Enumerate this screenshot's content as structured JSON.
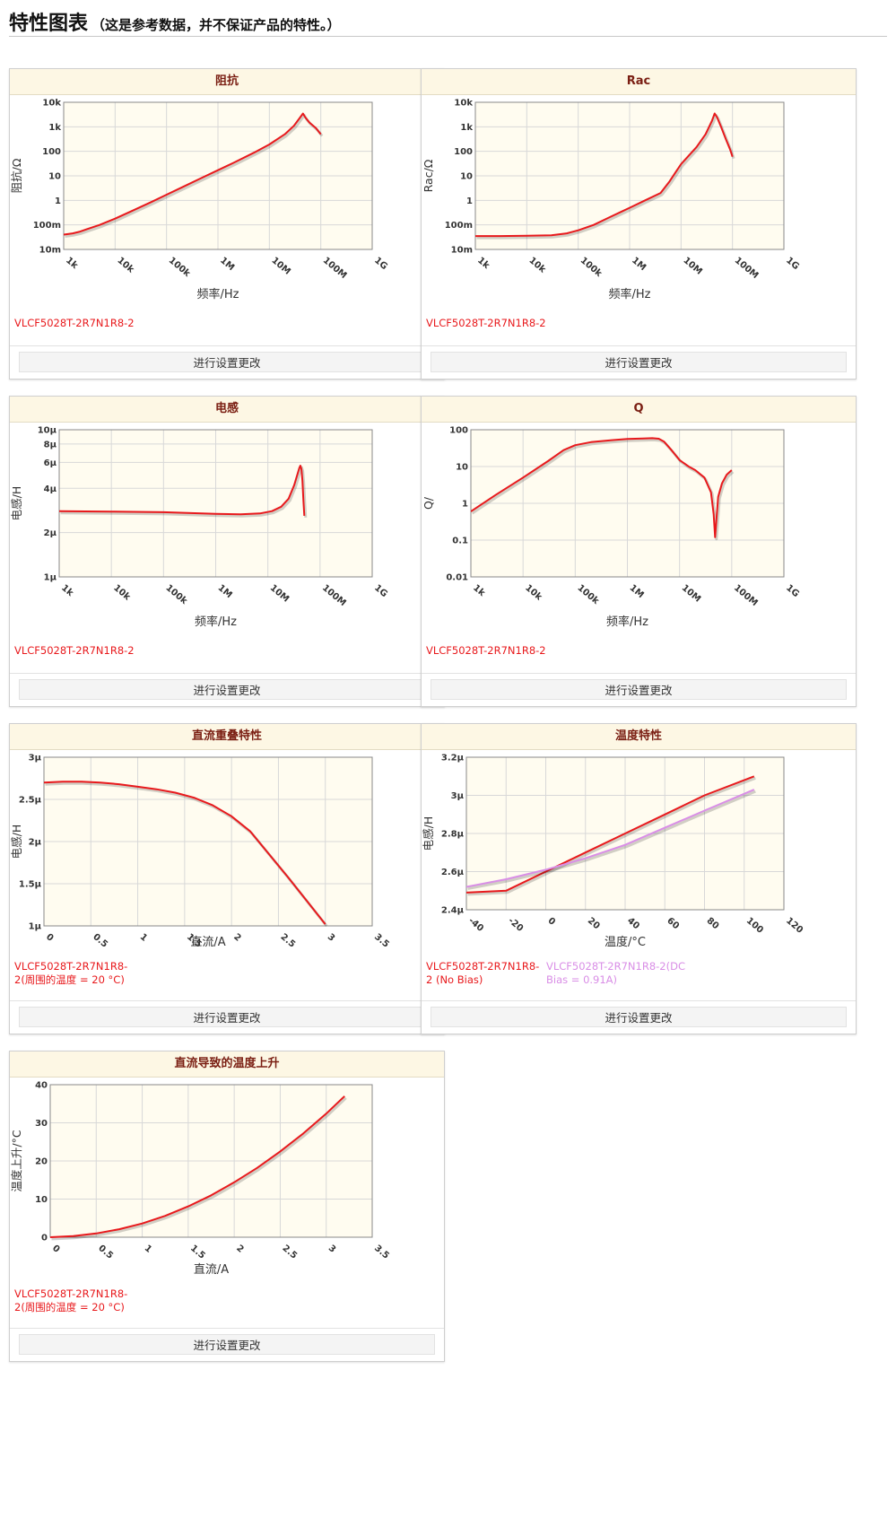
{
  "header": {
    "title": "特性图表",
    "subtitle": "（这是参考数据，并不保证产品的特性。）"
  },
  "button_label": "进行设置更改",
  "colors": {
    "series_red": "#e8191c",
    "series_violet": "#d98ee6",
    "plot_bg": "#fffcf0",
    "grid": "#d8d8d8",
    "header_bg": "#fdf7e4",
    "title_text": "#7a1e12"
  },
  "chart_data": [
    {
      "id": "impedance",
      "title": "阻抗",
      "type": "line",
      "x_scale": "log",
      "y_scale": "log",
      "xlim": [
        1000,
        1000000000
      ],
      "ylim": [
        0.01,
        10000
      ],
      "x_ticks": [
        "1k",
        "10k",
        "100k",
        "1M",
        "10M",
        "100M",
        "1G"
      ],
      "y_ticks": [
        "10m",
        "100m",
        "1",
        "10",
        "100",
        "1k",
        "10k"
      ],
      "xlabel": "频率/Hz",
      "ylabel": "阻抗/Ω",
      "series": [
        {
          "name": "VLCF5028T-2R7N1R8-2",
          "color": "#e8191c",
          "x": [
            1000,
            1500,
            2000,
            3000,
            5000,
            10000,
            20000,
            50000,
            100000,
            200000,
            500000,
            1000000,
            2000000,
            5000000,
            10000000,
            20000000,
            30000000,
            40000000,
            45000000,
            50000000,
            60000000,
            80000000,
            100000000
          ],
          "y": [
            0.04,
            0.045,
            0.052,
            0.07,
            0.1,
            0.18,
            0.35,
            0.85,
            1.7,
            3.4,
            8.5,
            17,
            34,
            88,
            190,
            500,
            1100,
            2500,
            3500,
            2400,
            1500,
            900,
            500
          ]
        }
      ]
    },
    {
      "id": "rac",
      "title": "Rac",
      "type": "line",
      "x_scale": "log",
      "y_scale": "log",
      "xlim": [
        1000,
        1000000000
      ],
      "ylim": [
        0.01,
        10000
      ],
      "x_ticks": [
        "1k",
        "10k",
        "100k",
        "1M",
        "10M",
        "100M",
        "1G"
      ],
      "y_ticks": [
        "10m",
        "100m",
        "1",
        "10",
        "100",
        "1k",
        "10k"
      ],
      "xlabel": "频率/Hz",
      "ylabel": "Rac/Ω",
      "series": [
        {
          "name": "VLCF5028T-2R7N1R8-2",
          "color": "#e8191c",
          "x": [
            1000,
            3000,
            10000,
            30000,
            60000,
            100000,
            200000,
            400000,
            700000,
            1000000,
            2000000,
            4000000,
            6000000,
            8000000,
            10000000,
            20000000,
            30000000,
            40000000,
            45000000,
            50000000,
            60000000,
            75000000,
            90000000,
            100000000
          ],
          "y": [
            0.035,
            0.035,
            0.036,
            0.038,
            0.045,
            0.06,
            0.1,
            0.2,
            0.35,
            0.5,
            1.0,
            2.0,
            6,
            15,
            30,
            150,
            500,
            1800,
            3500,
            2500,
            1000,
            300,
            120,
            60
          ]
        }
      ]
    },
    {
      "id": "inductance",
      "title": "电感",
      "type": "line",
      "x_scale": "log",
      "y_scale": "log",
      "xlim": [
        1000,
        1000000000
      ],
      "ylim": [
        1,
        10
      ],
      "x_ticks": [
        "1k",
        "10k",
        "100k",
        "1M",
        "10M",
        "100M",
        "1G"
      ],
      "y_ticks": [
        [
          "1μ",
          1
        ],
        [
          "2μ",
          2
        ],
        [
          "4μ",
          4
        ],
        [
          "6μ",
          6
        ],
        [
          "8μ",
          8
        ],
        [
          "10μ",
          10
        ]
      ],
      "xlabel": "频率/Hz",
      "ylabel": "电感/H",
      "series": [
        {
          "name": "VLCF5028T-2R7N1R8-2",
          "color": "#e8191c",
          "x": [
            1000,
            10000,
            100000,
            1000000,
            3000000,
            7000000,
            12000000,
            18000000,
            25000000,
            32000000,
            37000000,
            40000000,
            42000000,
            44000000,
            46000000,
            48000000,
            50000000
          ],
          "y": [
            2.8,
            2.78,
            2.75,
            2.68,
            2.66,
            2.7,
            2.8,
            3.0,
            3.4,
            4.2,
            5.0,
            5.5,
            5.7,
            5.4,
            4.5,
            3.3,
            2.6
          ]
        }
      ]
    },
    {
      "id": "q",
      "title": "Q",
      "type": "line",
      "x_scale": "log",
      "y_scale": "log",
      "xlim": [
        1000,
        1000000000
      ],
      "ylim": [
        0.01,
        100
      ],
      "x_ticks": [
        "1k",
        "10k",
        "100k",
        "1M",
        "10M",
        "100M",
        "1G"
      ],
      "y_ticks": [
        [
          "0.01",
          0.01
        ],
        [
          "0.1",
          0.1
        ],
        [
          "1",
          1
        ],
        [
          "10",
          10
        ],
        [
          "100",
          100
        ]
      ],
      "xlabel": "频率/Hz",
      "ylabel": "Q/",
      "series": [
        {
          "name": "VLCF5028T-2R7N1R8-2",
          "color": "#e8191c",
          "x": [
            1000,
            3000,
            10000,
            30000,
            60000,
            100000,
            200000,
            500000,
            1000000,
            2000000,
            3000000,
            4000000,
            5000000,
            7000000,
            10000000,
            15000000,
            20000000,
            30000000,
            40000000,
            45000000,
            48000000,
            50000000,
            55000000,
            65000000,
            80000000,
            100000000
          ],
          "y": [
            0.6,
            1.7,
            5,
            14,
            28,
            38,
            46,
            52,
            56,
            58,
            59,
            57,
            48,
            28,
            15,
            10,
            8,
            5,
            2,
            0.5,
            0.12,
            0.25,
            1.5,
            3.5,
            6,
            8
          ]
        }
      ]
    },
    {
      "id": "dc_bias",
      "title": "直流重叠特性",
      "type": "line",
      "x_scale": "linear",
      "y_scale": "linear",
      "xlim": [
        0,
        3.5
      ],
      "ylim": [
        1,
        3
      ],
      "x_ticks": [
        [
          "0",
          0
        ],
        [
          "0.5",
          0.5
        ],
        [
          "1",
          1
        ],
        [
          "1.5",
          1.5
        ],
        [
          "2",
          2
        ],
        [
          "2.5",
          2.5
        ],
        [
          "3",
          3
        ],
        [
          "3.5",
          3.5
        ]
      ],
      "y_ticks": [
        [
          "1μ",
          1
        ],
        [
          "1.5μ",
          1.5
        ],
        [
          "2μ",
          2
        ],
        [
          "2.5μ",
          2.5
        ],
        [
          "3μ",
          3
        ]
      ],
      "xlabel": "直流/A",
      "ylabel": "电感/H",
      "series": [
        {
          "name": "VLCF5028T-2R7N1R8-2(周围的温度 = 20 °C)",
          "color": "#e8191c",
          "x": [
            0,
            0.2,
            0.4,
            0.6,
            0.8,
            1.0,
            1.2,
            1.4,
            1.6,
            1.8,
            2.0,
            2.2,
            2.4,
            2.6,
            2.8,
            3.0
          ],
          "y": [
            2.7,
            2.71,
            2.71,
            2.7,
            2.68,
            2.65,
            2.62,
            2.58,
            2.52,
            2.43,
            2.3,
            2.12,
            1.85,
            1.58,
            1.3,
            1.02
          ]
        }
      ]
    },
    {
      "id": "temperature",
      "title": "温度特性",
      "type": "line",
      "x_scale": "linear",
      "y_scale": "linear",
      "xlim": [
        -40,
        120
      ],
      "ylim": [
        2.4,
        3.2
      ],
      "x_ticks": [
        [
          "-40",
          -40
        ],
        [
          "-20",
          -20
        ],
        [
          "0",
          0
        ],
        [
          "20",
          20
        ],
        [
          "40",
          40
        ],
        [
          "60",
          60
        ],
        [
          "80",
          80
        ],
        [
          "100",
          100
        ],
        [
          "120",
          120
        ]
      ],
      "y_ticks": [
        [
          "2.4μ",
          2.4
        ],
        [
          "2.6μ",
          2.6
        ],
        [
          "2.8μ",
          2.8
        ],
        [
          "3μ",
          3.0
        ],
        [
          "3.2μ",
          3.2
        ]
      ],
      "xlabel": "温度/°C",
      "ylabel": "电感/H",
      "series": [
        {
          "name": "VLCF5028T-2R7N1R8-2 (No Bias)",
          "color": "#e8191c",
          "x": [
            -40,
            -20,
            0,
            20,
            40,
            60,
            80,
            105
          ],
          "y": [
            2.49,
            2.5,
            2.6,
            2.7,
            2.8,
            2.9,
            3.0,
            3.1
          ]
        },
        {
          "name": "VLCF5028T-2R7N1R8-2(DC Bias = 0.91A)",
          "color": "#d98ee6",
          "x": [
            -40,
            -20,
            0,
            20,
            40,
            60,
            80,
            105
          ],
          "y": [
            2.52,
            2.56,
            2.61,
            2.67,
            2.74,
            2.83,
            2.92,
            3.03
          ]
        }
      ]
    },
    {
      "id": "temp_rise",
      "title": "直流导致的温度上升",
      "type": "line",
      "x_scale": "linear",
      "y_scale": "linear",
      "xlim": [
        0,
        3.5
      ],
      "ylim": [
        0,
        40
      ],
      "x_ticks": [
        [
          "0",
          0
        ],
        [
          "0.5",
          0.5
        ],
        [
          "1",
          1
        ],
        [
          "1.5",
          1.5
        ],
        [
          "2",
          2
        ],
        [
          "2.5",
          2.5
        ],
        [
          "3",
          3
        ],
        [
          "3.5",
          3.5
        ]
      ],
      "y_ticks": [
        [
          "0",
          0
        ],
        [
          "10",
          10
        ],
        [
          "20",
          20
        ],
        [
          "30",
          30
        ],
        [
          "40",
          40
        ]
      ],
      "xlabel": "直流/A",
      "ylabel": "温度上升/°C",
      "series": [
        {
          "name": "VLCF5028T-2R7N1R8-2(周围的温度 = 20 °C)",
          "color": "#e8191c",
          "x": [
            0,
            0.25,
            0.5,
            0.75,
            1.0,
            1.25,
            1.5,
            1.75,
            2.0,
            2.25,
            2.5,
            2.75,
            3.0,
            3.2
          ],
          "y": [
            0,
            0.3,
            1.0,
            2.1,
            3.6,
            5.6,
            8.1,
            11.0,
            14.4,
            18.2,
            22.5,
            27.2,
            32.4,
            37
          ]
        }
      ]
    }
  ]
}
